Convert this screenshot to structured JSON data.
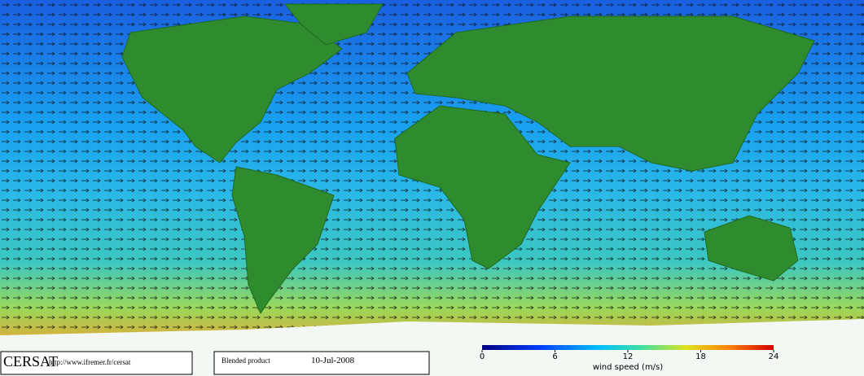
{
  "footer": {
    "organization": "CERSAT",
    "url": "http://www.ifremer.fr/cersat",
    "product": "Blended product",
    "date": "10-Jul-2008"
  },
  "colorbar": {
    "label": "wind speed (m/s)",
    "lim": [
      0,
      24
    ],
    "ticks": [
      0,
      6,
      12,
      18,
      24
    ]
  }
}
